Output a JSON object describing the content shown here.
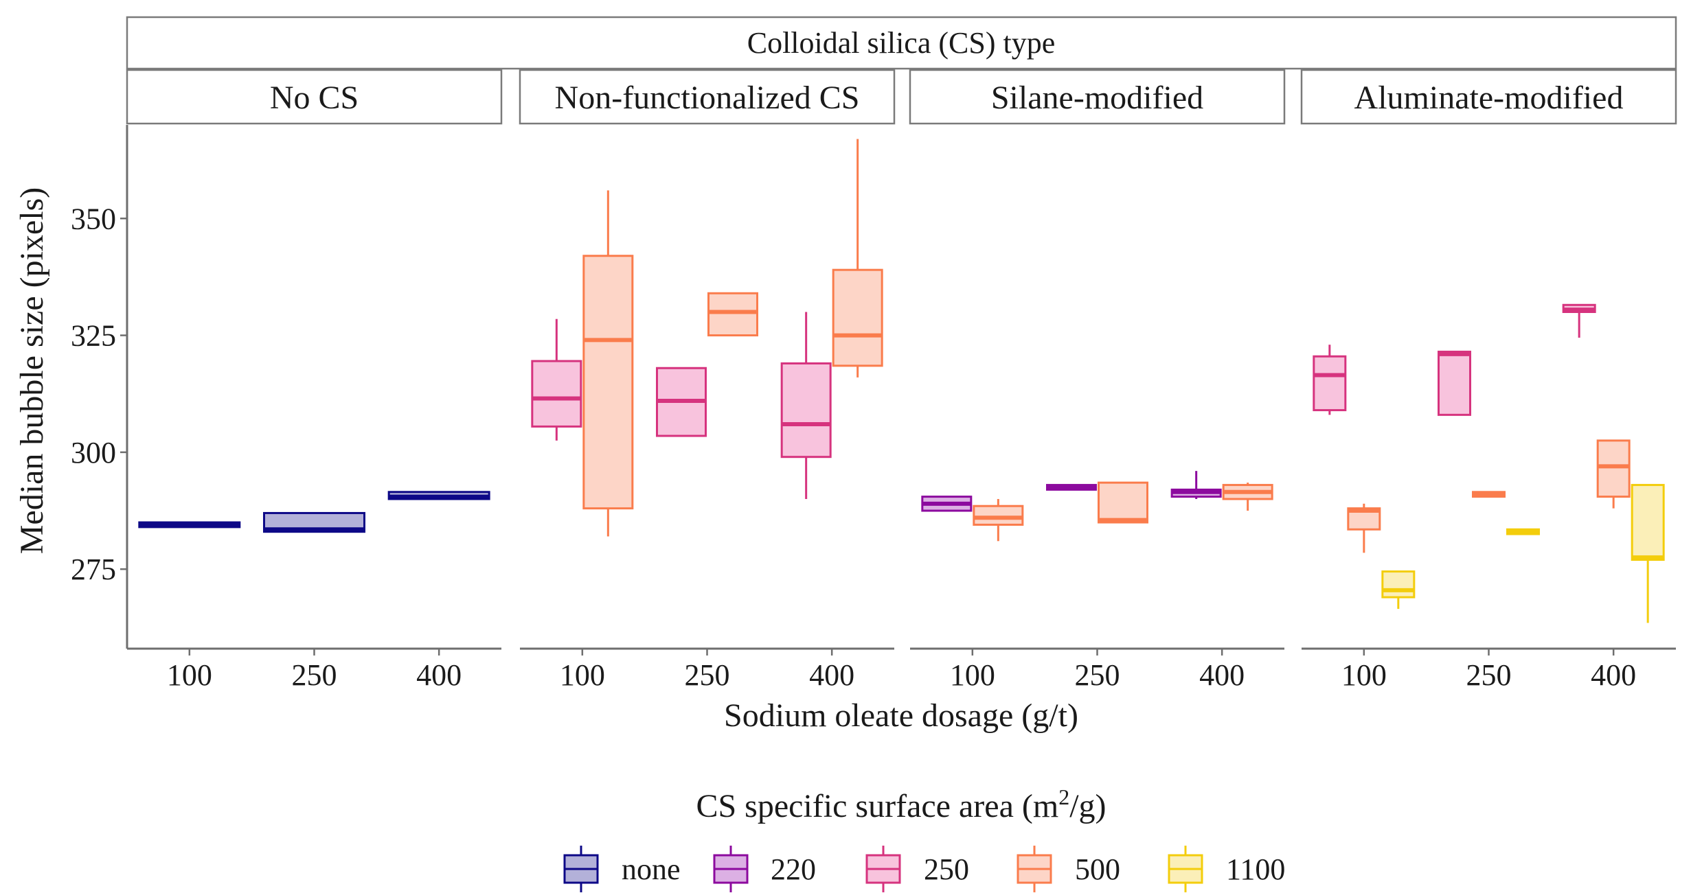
{
  "chart_data": {
    "type": "boxplot",
    "title": "Colloidal silica (CS) type",
    "xlabel": "Sodium oleate dosage (g/t)",
    "ylabel": "Median bubble size (pixels)",
    "ylim": [
      258,
      370
    ],
    "yticks": [
      275,
      300,
      325,
      350
    ],
    "dosages": [
      "100",
      "250",
      "400"
    ],
    "legend": {
      "title_prefix": "CS specific surface area (m",
      "title_sup": "2",
      "title_suffix": "/g)",
      "position": "bottom",
      "entries": [
        {
          "key": "none",
          "label": "none",
          "stroke": "#0d0887",
          "fill": "#b3b1d9"
        },
        {
          "key": "220",
          "label": "220",
          "stroke": "#8c0a9e",
          "fill": "#dcb0e4"
        },
        {
          "key": "250",
          "label": "250",
          "stroke": "#d6337e",
          "fill": "#f8c3dd"
        },
        {
          "key": "500",
          "label": "500",
          "stroke": "#fa7c4c",
          "fill": "#fdd5c7"
        },
        {
          "key": "1100",
          "label": "1100",
          "stroke": "#f3cd0c",
          "fill": "#fbefb8"
        }
      ]
    },
    "facets": [
      {
        "label": "No CS",
        "boxes": [
          {
            "dosage": "100",
            "ssa": "none",
            "min": 284,
            "q1": 284,
            "median": 284.5,
            "q3": 285,
            "max": 285
          },
          {
            "dosage": "250",
            "ssa": "none",
            "min": 283,
            "q1": 283,
            "median": 283.5,
            "q3": 287,
            "max": 287
          },
          {
            "dosage": "400",
            "ssa": "none",
            "min": 290,
            "q1": 290,
            "median": 290.5,
            "q3": 291.5,
            "max": 291.5
          }
        ]
      },
      {
        "label": "Non-functionalized CS",
        "boxes": [
          {
            "dosage": "100",
            "ssa": "250",
            "min": 302.5,
            "q1": 305.5,
            "median": 311.5,
            "q3": 319.5,
            "max": 328.5
          },
          {
            "dosage": "100",
            "ssa": "500",
            "min": 282,
            "q1": 288,
            "median": 324,
            "q3": 342,
            "max": 356
          },
          {
            "dosage": "250",
            "ssa": "250",
            "min": 303.5,
            "q1": 303.5,
            "median": 311,
            "q3": 318,
            "max": 318
          },
          {
            "dosage": "250",
            "ssa": "500",
            "min": 325,
            "q1": 325,
            "median": 330,
            "q3": 334,
            "max": 334
          },
          {
            "dosage": "400",
            "ssa": "250",
            "min": 290,
            "q1": 299,
            "median": 306,
            "q3": 319,
            "max": 330
          },
          {
            "dosage": "400",
            "ssa": "500",
            "min": 316,
            "q1": 318.5,
            "median": 325,
            "q3": 339,
            "max": 367
          }
        ]
      },
      {
        "label": "Silane-modified",
        "boxes": [
          {
            "dosage": "100",
            "ssa": "220",
            "min": 287.5,
            "q1": 287.5,
            "median": 289,
            "q3": 290.5,
            "max": 290.5
          },
          {
            "dosage": "100",
            "ssa": "500",
            "min": 281,
            "q1": 284.5,
            "median": 286,
            "q3": 288.5,
            "max": 290
          },
          {
            "dosage": "250",
            "ssa": "220",
            "min": 292,
            "q1": 292,
            "median": 292.5,
            "q3": 293,
            "max": 293
          },
          {
            "dosage": "250",
            "ssa": "500",
            "min": 285,
            "q1": 285,
            "median": 285.5,
            "q3": 293.5,
            "max": 293.5
          },
          {
            "dosage": "400",
            "ssa": "220",
            "min": 290,
            "q1": 290.5,
            "median": 291.5,
            "q3": 292,
            "max": 296
          },
          {
            "dosage": "400",
            "ssa": "500",
            "min": 287.5,
            "q1": 290,
            "median": 291.5,
            "q3": 293,
            "max": 293.5
          }
        ]
      },
      {
        "label": "Aluminate-modified",
        "boxes": [
          {
            "dosage": "100",
            "ssa": "250",
            "min": 308,
            "q1": 309,
            "median": 316.5,
            "q3": 320.5,
            "max": 323
          },
          {
            "dosage": "100",
            "ssa": "500",
            "min": 278.5,
            "q1": 283.5,
            "median": 287.5,
            "q3": 288,
            "max": 289
          },
          {
            "dosage": "100",
            "ssa": "1100",
            "min": 266.5,
            "q1": 269,
            "median": 270.5,
            "q3": 274.5,
            "max": 274.5
          },
          {
            "dosage": "250",
            "ssa": "250",
            "min": 308,
            "q1": 308,
            "median": 321,
            "q3": 321.5,
            "max": 321.5
          },
          {
            "dosage": "250",
            "ssa": "500",
            "min": 290.5,
            "q1": 290.5,
            "median": 291,
            "q3": 291.5,
            "max": 291.5
          },
          {
            "dosage": "250",
            "ssa": "1100",
            "min": 282.5,
            "q1": 282.5,
            "median": 283,
            "q3": 283.5,
            "max": 283.5
          },
          {
            "dosage": "400",
            "ssa": "250",
            "min": 324.5,
            "q1": 330,
            "median": 330.5,
            "q3": 331.5,
            "max": 331.5
          },
          {
            "dosage": "400",
            "ssa": "500",
            "min": 288,
            "q1": 290.5,
            "median": 297,
            "q3": 302.5,
            "max": 302.5
          },
          {
            "dosage": "400",
            "ssa": "1100",
            "min": 263.5,
            "q1": 277,
            "median": 277.5,
            "q3": 293,
            "max": 293
          }
        ]
      }
    ]
  }
}
